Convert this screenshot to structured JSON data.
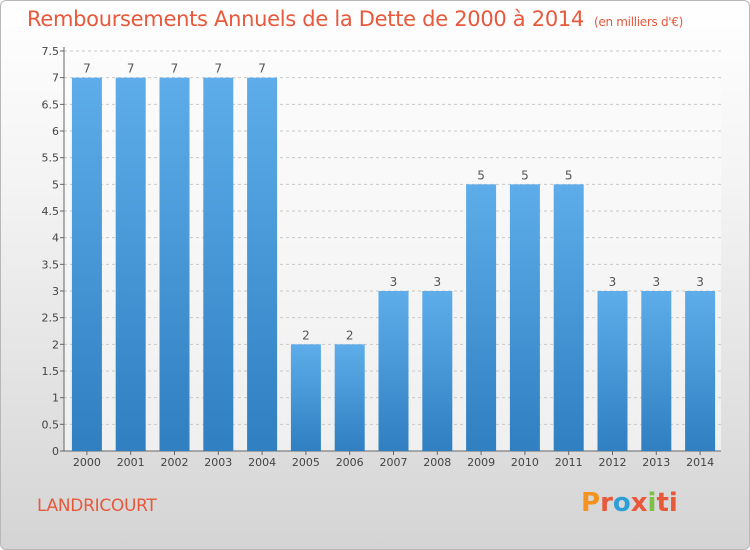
{
  "header": {
    "title": "Remboursements Annuels de la Dette de 2000 à 2014",
    "unit": "(en milliers d'€)"
  },
  "footer": {
    "commune": "LANDRICOURT",
    "brand": "Proxiti",
    "brand_colors": [
      "#f4931f",
      "#e8583a",
      "#2e9fd6",
      "#e8583a",
      "#7cc242",
      "#e8583a",
      "#e8583a"
    ]
  },
  "colors": {
    "bar_top": "#5eadea",
    "bar_bottom": "#2f7fc1",
    "accent": "#e8583a",
    "grid": "#c8c8c8"
  },
  "chart_data": {
    "type": "bar",
    "title": "Remboursements Annuels de la Dette de 2000 à 2014",
    "subtitle": "(en milliers d'€)",
    "categories": [
      "2000",
      "2001",
      "2002",
      "2003",
      "2004",
      "2005",
      "2006",
      "2007",
      "2008",
      "2009",
      "2010",
      "2011",
      "2012",
      "2013",
      "2014"
    ],
    "values": [
      7,
      7,
      7,
      7,
      7,
      2,
      2,
      3,
      3,
      5,
      5,
      5,
      3,
      3,
      3
    ],
    "yticks": [
      "0",
      "0.5",
      "1",
      "1.5",
      "2",
      "2.5",
      "3",
      "3.5",
      "4",
      "4.5",
      "5",
      "5.5",
      "6",
      "6.5",
      "7",
      "7.5"
    ],
    "ylim": [
      0,
      7.5
    ],
    "grid": true,
    "xlabel": "",
    "ylabel": ""
  }
}
